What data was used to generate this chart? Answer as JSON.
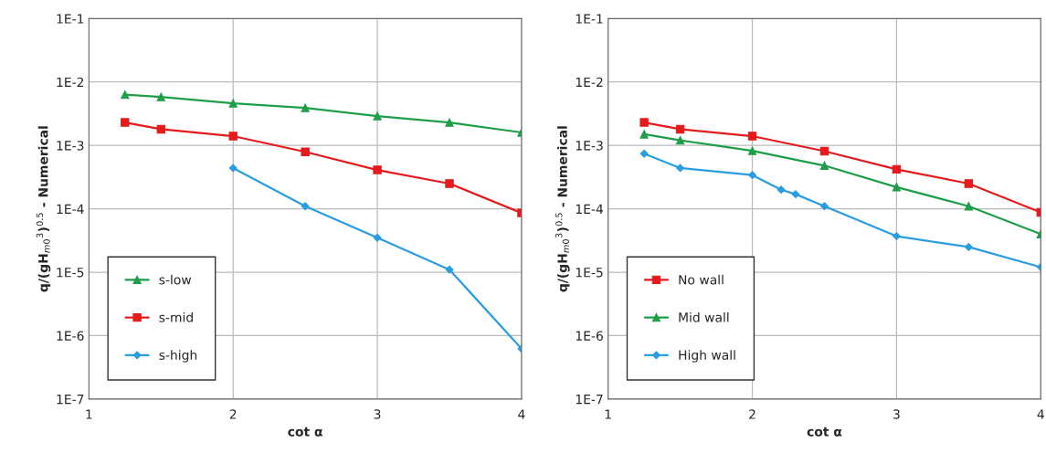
{
  "chart_data": [
    {
      "type": "line",
      "xlabel": "cot α",
      "ylabel": "q/(gH$_{m0}$$^{3}$)$^{0.5}$ - Numerical",
      "log": "y",
      "grid": true,
      "legend": "bottom left",
      "xlim": [
        1,
        4
      ],
      "xticks": [
        1,
        2,
        3,
        4
      ],
      "ylim": [
        1e-07,
        0.1
      ],
      "yticks": [
        {
          "value": 1e-07,
          "label": "1E-7"
        },
        {
          "value": 1e-06,
          "label": "1E-6"
        },
        {
          "value": 1e-05,
          "label": "1E-5"
        },
        {
          "value": 0.0001,
          "label": "1E-4"
        },
        {
          "value": 0.001,
          "label": "1E-3"
        },
        {
          "value": 0.01,
          "label": "1E-2"
        },
        {
          "value": 0.1,
          "label": "1E-1"
        }
      ],
      "series": [
        {
          "name": "s-low",
          "color": "#1f9e4a",
          "marker": "triangle",
          "x": [
            1.25,
            1.5,
            2,
            2.5,
            3,
            3.5,
            4
          ],
          "values": [
            0.0063,
            0.0058,
            0.0046,
            0.0039,
            0.0029,
            0.0023,
            0.0016
          ]
        },
        {
          "name": "s-mid",
          "color": "#e41a1c",
          "marker": "square",
          "x": [
            1.25,
            1.5,
            2,
            2.5,
            3,
            3.5,
            4
          ],
          "values": [
            0.0023,
            0.0018,
            0.0014,
            0.00079,
            0.00041,
            0.00025,
            8.6e-05
          ]
        },
        {
          "name": "s-high",
          "color": "#2a9de0",
          "marker": "diamond",
          "x": [
            2,
            2.5,
            3,
            3.5,
            4
          ],
          "values": [
            0.00044,
            0.00011,
            3.5e-05,
            1.1e-05,
            6.2e-07
          ]
        }
      ]
    },
    {
      "type": "line",
      "xlabel": "cot α",
      "ylabel": "q/(gH$_{m0}$$^{3}$)$^{0.5}$ - Numerical",
      "log": "y",
      "grid": true,
      "legend": "bottom left",
      "xlim": [
        1,
        4
      ],
      "xticks": [
        1,
        2,
        3,
        4
      ],
      "ylim": [
        1e-07,
        0.1
      ],
      "yticks": [
        {
          "value": 1e-07,
          "label": "1E-7"
        },
        {
          "value": 1e-06,
          "label": "1E-6"
        },
        {
          "value": 1e-05,
          "label": "1E-5"
        },
        {
          "value": 0.0001,
          "label": "1E-4"
        },
        {
          "value": 0.001,
          "label": "1E-3"
        },
        {
          "value": 0.01,
          "label": "1E-2"
        },
        {
          "value": 0.1,
          "label": "1E-1"
        }
      ],
      "series": [
        {
          "name": "No wall",
          "color": "#e41a1c",
          "marker": "square",
          "x": [
            1.25,
            1.5,
            2,
            2.5,
            3,
            3.5,
            4
          ],
          "values": [
            0.0023,
            0.0018,
            0.0014,
            0.00081,
            0.00042,
            0.00025,
            8.8e-05
          ]
        },
        {
          "name": "Mid wall",
          "color": "#1f9e4a",
          "marker": "triangle",
          "x": [
            1.25,
            1.5,
            2,
            2.5,
            3,
            3.5,
            4
          ],
          "values": [
            0.0015,
            0.0012,
            0.00082,
            0.00048,
            0.00022,
            0.00011,
            4e-05
          ]
        },
        {
          "name": "High wall",
          "color": "#2a9de0",
          "marker": "diamond",
          "x": [
            1.25,
            1.5,
            2,
            2.2,
            2.3,
            2.5,
            3,
            3.5,
            4
          ],
          "values": [
            0.00074,
            0.00044,
            0.00034,
            0.0002,
            0.00017,
            0.00011,
            3.7e-05,
            2.5e-05,
            1.2e-05
          ]
        }
      ]
    }
  ]
}
